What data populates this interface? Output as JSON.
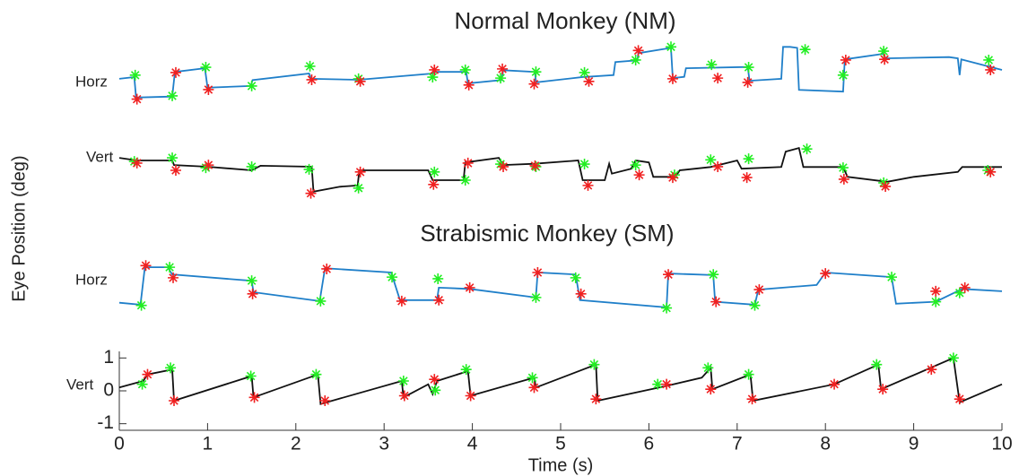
{
  "chart_data": [
    {
      "type": "line",
      "title": "Normal Monkey (NM)",
      "label": "Horz",
      "series": [
        {
          "color": "#1f7fc9",
          "x": [
            0,
            0.17,
            0.19,
            0.6,
            0.63,
            0.97,
            1.0,
            1.49,
            1.51,
            2.15,
            2.17,
            2.71,
            3.55,
            3.57,
            3.93,
            3.95,
            4.33,
            4.35,
            4.71,
            4.72,
            5.27,
            5.3,
            5.6,
            5.62,
            5.87,
            5.88,
            6.25,
            6.27,
            6.4,
            6.42,
            7.12,
            7.14,
            7.5,
            7.52,
            7.6,
            7.68,
            7.7,
            8.2,
            8.22,
            8.66,
            8.68,
            9.4,
            9.5,
            9.52,
            9.54,
            10
          ],
          "values": [
            -0.16,
            -0.11,
            -0.73,
            -0.7,
            0.05,
            0.16,
            -0.43,
            -0.38,
            -0.2,
            0.0,
            -0.16,
            -0.19,
            0.0,
            0.05,
            0.05,
            -0.3,
            -0.2,
            0.1,
            0.05,
            -0.27,
            -0.1,
            -0.1,
            -0.05,
            0.35,
            0.4,
            0.62,
            0.78,
            -0.14,
            -0.1,
            0.16,
            0.2,
            -0.22,
            -0.16,
            0.81,
            0.81,
            0.78,
            -0.5,
            -0.55,
            0.43,
            0.6,
            0.46,
            0.5,
            0.46,
            -0.05,
            0.43,
            0.11
          ]
        },
        {
          "color": "#22ee22",
          "marker": "asterisk",
          "x": [
            0.18,
            0.6,
            0.98,
            1.5,
            2.16,
            2.71,
            3.55,
            3.92,
            4.32,
            4.72,
            5.27,
            5.85,
            6.25,
            6.71,
            7.13,
            7.77,
            8.2,
            8.66,
            9.85
          ],
          "values": [
            -0.05,
            -0.68,
            0.19,
            -0.38,
            0.22,
            -0.16,
            -0.11,
            0.11,
            -0.14,
            0.05,
            0.03,
            0.41,
            0.81,
            0.27,
            0.19,
            0.73,
            -0.05,
            0.68,
            0.41
          ]
        },
        {
          "color": "#f02020",
          "marker": "asterisk",
          "x": [
            0.2,
            0.64,
            1.01,
            2.18,
            2.73,
            3.57,
            3.96,
            4.34,
            4.7,
            5.32,
            5.88,
            6.27,
            6.78,
            7.12,
            8.23,
            8.67,
            9.87
          ],
          "values": [
            -0.78,
            0.03,
            -0.49,
            -0.19,
            -0.24,
            0.11,
            -0.35,
            0.14,
            -0.32,
            -0.24,
            0.7,
            -0.16,
            -0.14,
            -0.27,
            0.41,
            0.43,
            0.11
          ]
        }
      ]
    },
    {
      "type": "line",
      "label": "Vert",
      "series": [
        {
          "color": "#111111",
          "x": [
            0,
            0.2,
            0.6,
            0.62,
            1.0,
            1.5,
            1.6,
            2.18,
            2.2,
            2.5,
            2.7,
            2.72,
            3.5,
            3.55,
            3.9,
            3.92,
            4.3,
            4.35,
            4.7,
            5.2,
            5.25,
            5.5,
            5.55,
            5.58,
            5.8,
            5.85,
            6.0,
            6.05,
            6.3,
            6.35,
            6.7,
            7.0,
            7.05,
            7.5,
            7.55,
            7.7,
            7.75,
            8.2,
            8.25,
            8.7,
            9.0,
            9.5,
            9.55,
            10
          ],
          "values": [
            0.38,
            0.3,
            0.3,
            0.16,
            0.11,
            0.0,
            0.14,
            0.11,
            -0.65,
            -0.5,
            -0.46,
            0.0,
            0.0,
            -0.3,
            -0.3,
            0.24,
            0.38,
            0.16,
            0.2,
            0.3,
            -0.3,
            -0.3,
            0.2,
            -0.1,
            0.05,
            0.3,
            0.24,
            -0.2,
            -0.2,
            0.0,
            0.1,
            0.3,
            0.05,
            0.1,
            0.57,
            0.68,
            0.1,
            0.1,
            -0.2,
            -0.35,
            -0.2,
            -0.05,
            0.1,
            0.1
          ]
        },
        {
          "color": "#22ee22",
          "marker": "asterisk",
          "x": [
            0.17,
            0.6,
            0.98,
            1.5,
            2.15,
            2.71,
            3.57,
            3.92,
            4.32,
            4.72,
            5.27,
            5.85,
            6.29,
            6.7,
            7.13,
            7.79,
            8.2,
            8.66,
            9.84
          ],
          "values": [
            0.27,
            0.38,
            0.08,
            0.11,
            0.03,
            -0.54,
            -0.05,
            -0.3,
            0.19,
            0.11,
            0.19,
            0.16,
            -0.14,
            0.32,
            0.35,
            0.65,
            0.08,
            -0.38,
            0.0
          ]
        },
        {
          "color": "#f02020",
          "marker": "asterisk",
          "x": [
            0.2,
            0.64,
            1.01,
            2.17,
            2.73,
            3.56,
            3.95,
            4.35,
            4.71,
            5.31,
            5.89,
            6.27,
            6.78,
            7.11,
            8.21,
            8.68,
            9.87
          ],
          "values": [
            0.22,
            0.0,
            0.16,
            -0.7,
            -0.05,
            -0.43,
            0.22,
            0.11,
            0.14,
            -0.46,
            -0.14,
            -0.22,
            0.11,
            -0.22,
            -0.27,
            -0.49,
            -0.05
          ]
        }
      ]
    },
    {
      "type": "line",
      "title": "Strabismic Monkey (SM)",
      "label": "Horz",
      "series": [
        {
          "color": "#1f7fc9",
          "x": [
            0,
            0.24,
            0.29,
            0.55,
            0.6,
            1.5,
            1.52,
            2.27,
            2.33,
            3.08,
            3.18,
            3.6,
            3.62,
            3.97,
            4.72,
            4.74,
            5.17,
            5.22,
            6.2,
            6.22,
            6.73,
            6.75,
            7.2,
            7.24,
            7.9,
            8.0,
            8.75,
            8.8,
            9.25,
            9.55,
            10
          ],
          "values": [
            -0.62,
            -0.68,
            0.46,
            0.46,
            0.24,
            0.05,
            -0.3,
            -0.57,
            0.43,
            0.3,
            -0.54,
            -0.54,
            -0.16,
            -0.2,
            -0.46,
            0.3,
            0.24,
            -0.54,
            -0.76,
            0.27,
            0.22,
            -0.59,
            -0.68,
            -0.22,
            -0.08,
            0.3,
            0.16,
            -0.65,
            -0.59,
            -0.2,
            -0.27
          ]
        },
        {
          "color": "#22ee22",
          "marker": "asterisk",
          "x": [
            0.25,
            0.57,
            1.5,
            2.28,
            3.09,
            3.61,
            4.72,
            5.17,
            6.2,
            6.73,
            7.2,
            8.75,
            9.25,
            9.52
          ],
          "values": [
            -0.7,
            0.46,
            0.05,
            -0.57,
            0.16,
            0.11,
            -0.46,
            0.14,
            -0.78,
            0.24,
            -0.7,
            0.16,
            -0.59,
            -0.32
          ]
        },
        {
          "color": "#f02020",
          "marker": "asterisk",
          "x": [
            0.3,
            0.61,
            1.51,
            2.35,
            3.2,
            3.62,
            3.97,
            4.74,
            5.23,
            6.22,
            6.76,
            7.25,
            8.0,
            9.25,
            9.58
          ],
          "values": [
            0.51,
            0.14,
            -0.35,
            0.41,
            -0.57,
            -0.54,
            -0.16,
            0.3,
            -0.35,
            0.24,
            -0.59,
            -0.22,
            0.27,
            -0.27,
            -0.16
          ]
        }
      ]
    },
    {
      "type": "line",
      "label": "Vert",
      "xlabel": "Time (s)",
      "ylabel": "Eye Position (deg)",
      "xlim": [
        0,
        10
      ],
      "xticks": [
        0,
        1,
        2,
        3,
        4,
        5,
        6,
        7,
        8,
        9,
        10
      ],
      "ylim": [
        -1.2,
        1.2
      ],
      "yticks": [
        -1,
        0,
        1
      ],
      "series": [
        {
          "color": "#111111",
          "x": [
            0,
            0.27,
            0.32,
            0.6,
            0.62,
            1.5,
            1.52,
            2.25,
            2.28,
            3.2,
            3.22,
            3.5,
            3.55,
            3.6,
            3.95,
            3.98,
            4.7,
            4.72,
            5.4,
            5.42,
            6.2,
            6.6,
            6.7,
            6.72,
            7.15,
            7.18,
            8.1,
            8.6,
            8.63,
            9.45,
            9.52,
            10
          ],
          "values": [
            0.1,
            0.3,
            0.5,
            0.65,
            -0.3,
            0.45,
            -0.2,
            0.5,
            -0.4,
            0.3,
            -0.2,
            0.2,
            -0.1,
            0.3,
            0.6,
            -0.15,
            0.4,
            0.1,
            0.8,
            -0.3,
            0.15,
            0.4,
            0.7,
            0.05,
            0.5,
            -0.3,
            0.2,
            0.8,
            0.05,
            1.0,
            -0.35,
            0.2
          ]
        },
        {
          "color": "#22ee22",
          "marker": "asterisk",
          "x": [
            0.26,
            0.58,
            1.49,
            2.23,
            3.22,
            3.58,
            3.93,
            4.68,
            5.38,
            6.1,
            6.67,
            7.13,
            8.58,
            9.45
          ],
          "values": [
            0.2,
            0.7,
            0.45,
            0.5,
            0.3,
            0.02,
            0.65,
            0.4,
            0.8,
            0.2,
            0.7,
            0.5,
            0.8,
            1.0
          ]
        },
        {
          "color": "#f02020",
          "marker": "asterisk",
          "x": [
            0.32,
            0.62,
            1.53,
            2.33,
            3.23,
            3.57,
            3.98,
            4.7,
            5.4,
            6.2,
            6.7,
            7.17,
            8.1,
            8.65,
            9.2,
            9.52
          ],
          "values": [
            0.5,
            -0.3,
            -0.2,
            -0.3,
            -0.15,
            0.35,
            -0.15,
            0.1,
            -0.25,
            0.2,
            0.05,
            -0.25,
            0.2,
            0.05,
            0.65,
            -0.25
          ]
        }
      ]
    }
  ]
}
